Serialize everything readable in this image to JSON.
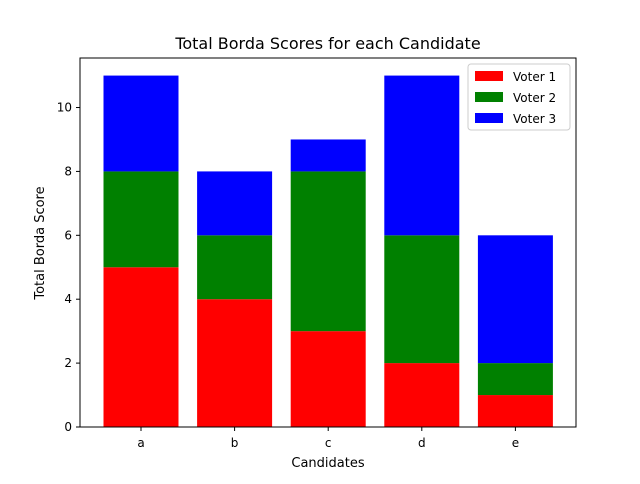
{
  "chart_data": {
    "type": "bar",
    "stacked": true,
    "title": "Total Borda Scores for each Candidate",
    "xlabel": "Candidates",
    "ylabel": "Total Borda Score",
    "categories": [
      "a",
      "b",
      "c",
      "d",
      "e"
    ],
    "series": [
      {
        "name": "Voter 1",
        "color": "#ff0000",
        "values": [
          5,
          4,
          3,
          2,
          1
        ]
      },
      {
        "name": "Voter 2",
        "color": "#008000",
        "values": [
          3,
          2,
          5,
          4,
          1
        ]
      },
      {
        "name": "Voter 3",
        "color": "#0000ff",
        "values": [
          3,
          2,
          1,
          5,
          4
        ]
      }
    ],
    "ylim": [
      0,
      11.55
    ],
    "yticks": [
      0,
      2,
      4,
      6,
      8,
      10
    ],
    "grid": false,
    "legend_position": "top-right"
  }
}
